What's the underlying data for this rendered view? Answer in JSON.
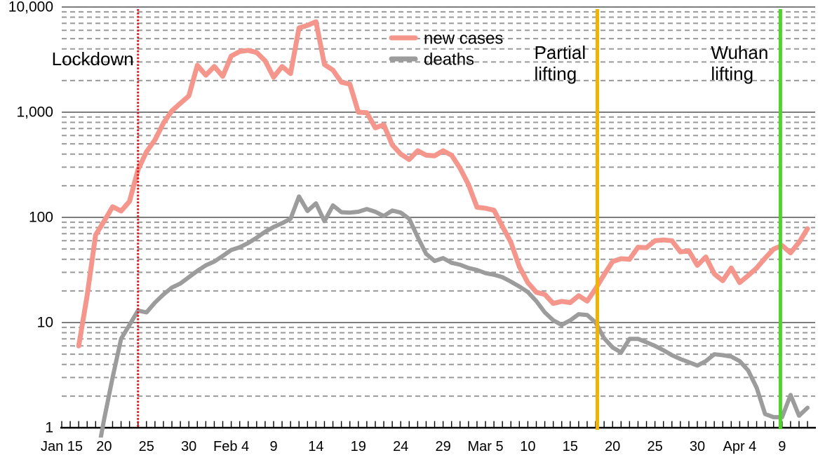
{
  "chart_data": {
    "type": "line",
    "title": "",
    "y_scale": "log10",
    "ylim": [
      1,
      10000
    ],
    "grid": {
      "major": "solid",
      "minor": "dashed"
    },
    "x_axis": {
      "day0_label": "Jan 15",
      "tick_days": [
        0,
        5,
        10,
        15,
        20,
        25,
        30,
        35,
        40,
        45,
        50,
        55,
        60,
        65,
        70,
        75,
        80,
        85
      ],
      "tick_labels": [
        "Jan 15",
        "20",
        "25",
        "30",
        "Feb 4",
        "9",
        "14",
        "19",
        "24",
        "29",
        "Mar 5",
        "10",
        "15",
        "20",
        "25",
        "30",
        "Apr 4",
        "9"
      ]
    },
    "y_axis": {
      "tick_values": [
        1,
        10,
        100,
        1000,
        10000
      ],
      "tick_labels": [
        "1",
        "10",
        "100",
        "1,000",
        "10,000"
      ]
    },
    "legend": {
      "position": "top-center",
      "items": [
        {
          "label": "new cases",
          "color": "#F5968C"
        },
        {
          "label": "deaths",
          "color": "#9C9C9C"
        }
      ]
    },
    "series": [
      {
        "name": "new cases",
        "color": "#F5968C",
        "start_day": 2,
        "values": [
          6,
          18,
          68,
          92,
          126,
          115,
          142,
          284,
          420,
          545,
          790,
          1030,
          1215,
          1430,
          2790,
          2250,
          2720,
          2190,
          3420,
          3780,
          3870,
          3700,
          3080,
          2150,
          2720,
          2330,
          6310,
          6700,
          7240,
          2840,
          2510,
          1930,
          1850,
          1000,
          990,
          710,
          760,
          490,
          400,
          355,
          430,
          390,
          385,
          430,
          390,
          293,
          205,
          125,
          122,
          117,
          82,
          58,
          34,
          24,
          19.4,
          18.5,
          15.2,
          15.9,
          15.5,
          18,
          16,
          21,
          28.5,
          38,
          40.5,
          40,
          52,
          51.5,
          60,
          61,
          60,
          47,
          48,
          35,
          42,
          29,
          25,
          33,
          24,
          28,
          33,
          41,
          50,
          54,
          46,
          58,
          78
        ]
      },
      {
        "name": "deaths",
        "color": "#9C9C9C",
        "start_day": 5,
        "lead": {
          "day": 4.35,
          "value": 0.62
        },
        "values": [
          1.2,
          3,
          7,
          9.5,
          13,
          12.5,
          15.5,
          18.5,
          21.5,
          23.5,
          27,
          31,
          35,
          38,
          43,
          49,
          52,
          57,
          64,
          73,
          81,
          88,
          97,
          158,
          115,
          136,
          92,
          130,
          112,
          111,
          113,
          120,
          113,
          103,
          116,
          111,
          97,
          65,
          45,
          38.5,
          41,
          37,
          35.5,
          33,
          31.6,
          29.5,
          28.5,
          27,
          24.5,
          22,
          19.5,
          16,
          12.5,
          10.5,
          9.5,
          10.5,
          12,
          11.8,
          10,
          7.1,
          5.8,
          5.2,
          7,
          7,
          6.5,
          6,
          5.45,
          4.9,
          4.5,
          4.2,
          3.9,
          4.3,
          5,
          4.9,
          4.75,
          4.3,
          3.5,
          2.4,
          1.35,
          1.26,
          1.26,
          2.05,
          1.3,
          1.55
        ]
      }
    ],
    "events": [
      {
        "name": "lockdown",
        "label_lines": [
          "Lockdown"
        ],
        "day": 9,
        "color": "#E2161A",
        "style": "dotted"
      },
      {
        "name": "partial-lifting",
        "label_lines": [
          "Partial",
          "lifting"
        ],
        "day": 63.2,
        "color": "#F2B200",
        "style": "solid"
      },
      {
        "name": "wuhan-lifting",
        "label_lines": [
          "Wuhan",
          "lifting"
        ],
        "day": 84.8,
        "color": "#50D32E",
        "style": "solid"
      }
    ]
  }
}
